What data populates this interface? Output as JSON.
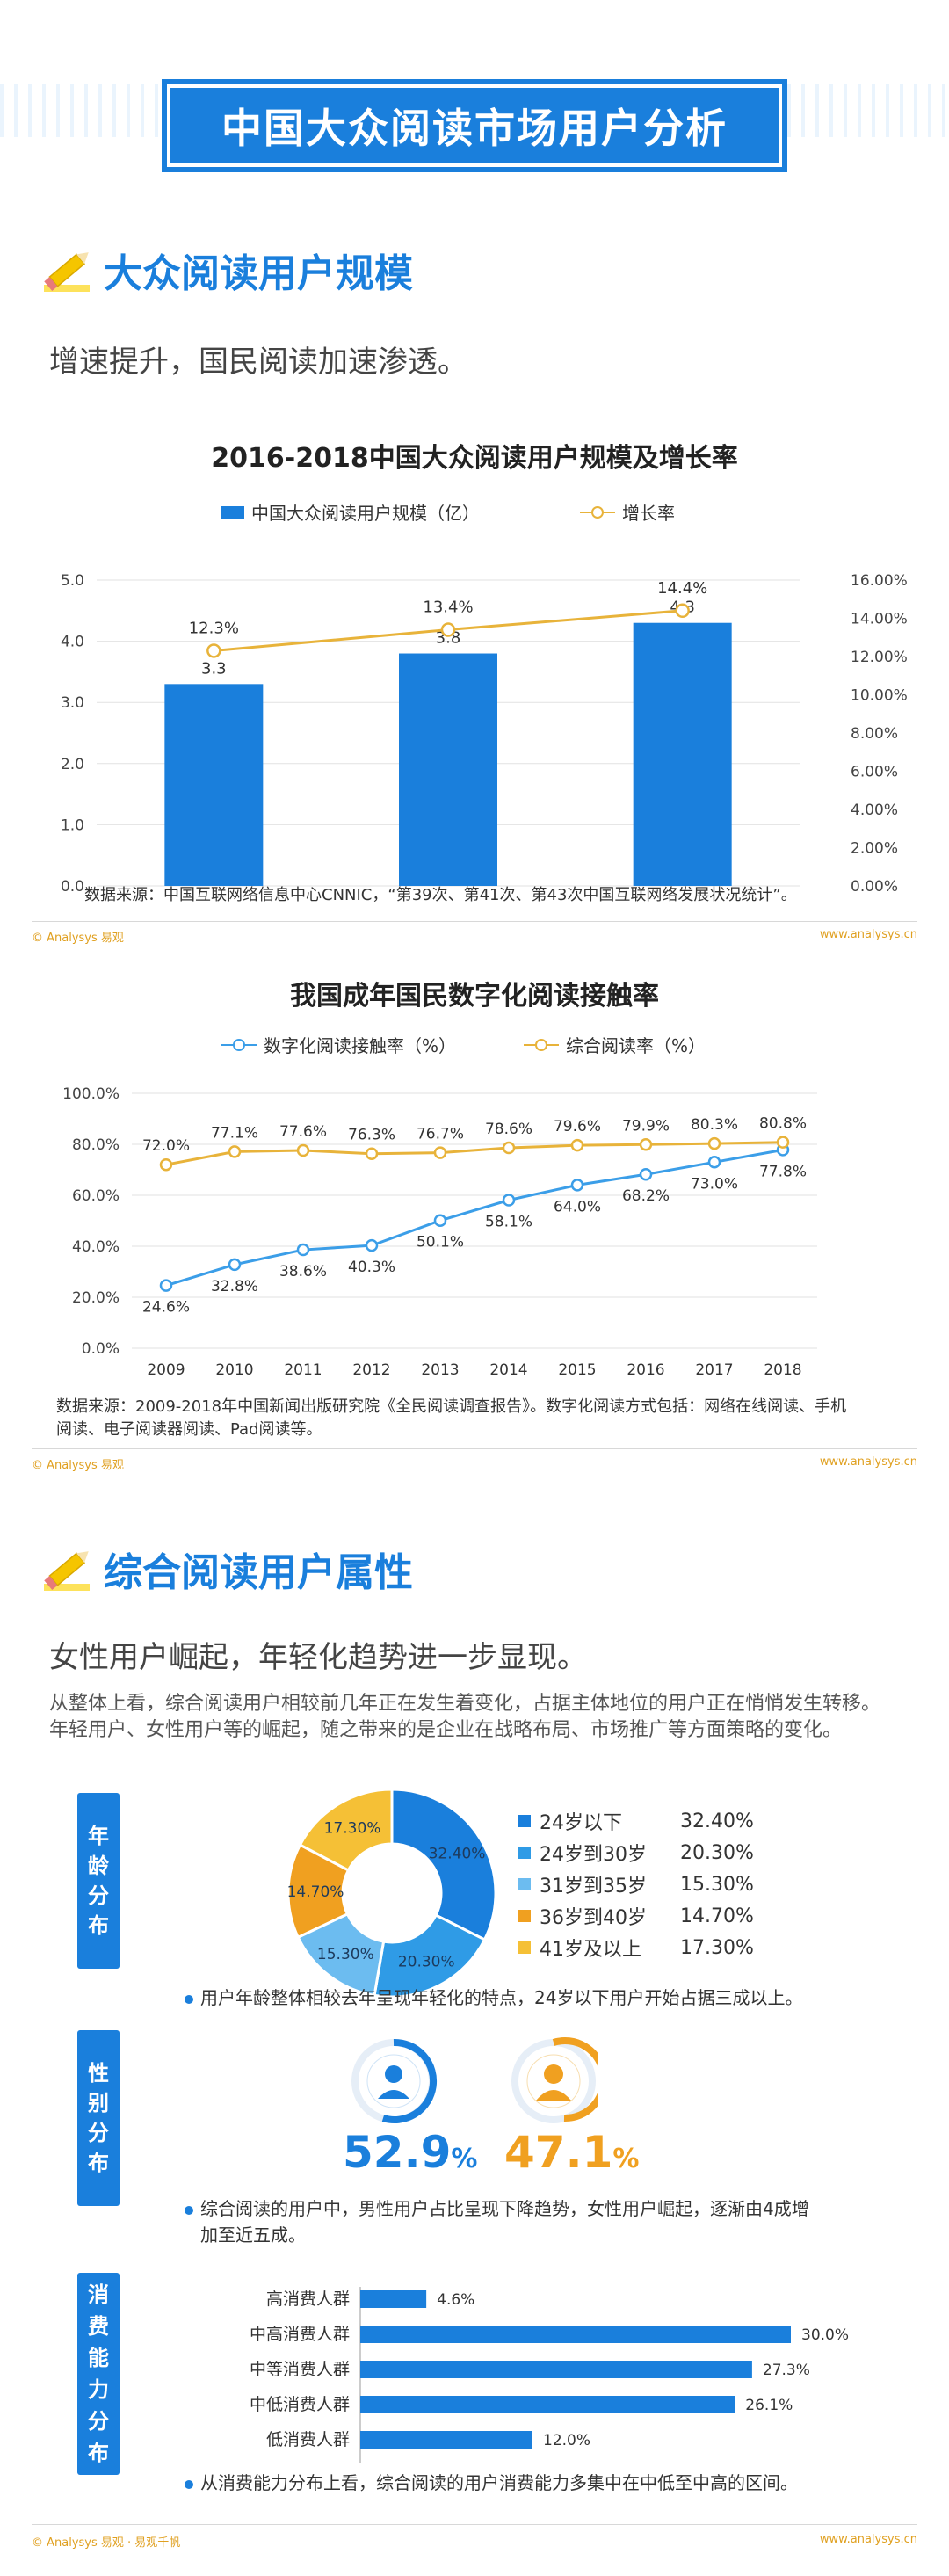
{
  "header": {
    "title": "中国大众阅读市场用户分析"
  },
  "section1": {
    "title": "大众阅读用户规模",
    "subtitle": "增速提升，国民阅读加速渗透。"
  },
  "chart1": {
    "title": "2016-2018中国大众阅读用户规模及增长率",
    "legend_bar": "中国大众阅读用户规模（亿）",
    "legend_line": "增长率",
    "source": "数据来源：中国互联网络信息中心CNNIC，“第39次、第41次、第43次中国互联网络发展状况统计”。"
  },
  "chart2": {
    "title": "我国成年国民数字化阅读接触率",
    "legend_a": "数字化阅读接触率（%）",
    "legend_b": "综合阅读率（%）",
    "source_line1": "数据来源：2009-2018年中国新闻出版研究院《全民阅读调查报告》。数字化阅读方式包括：网络在线阅读、手机",
    "source_line2": "阅读、电子阅读器阅读、Pad阅读等。"
  },
  "footer": {
    "left": "© Analysys 易观",
    "right": "www.analysys.cn"
  },
  "footer_bottom": {
    "left": "© Analysys 易观 · 易观千帆",
    "right": "www.analysys.cn"
  },
  "section2": {
    "title": "综合阅读用户属性",
    "subtitle": "女性用户崛起，年轻化趋势进一步显现。",
    "paragraph": "从整体上看，综合阅读用户相较前几年正在发生着变化，占据主体地位的用户正在悄悄发生转移。年轻用户、女性用户等的崛起，随之带来的是企业在战略布局、市场推广等方面策略的变化。"
  },
  "age": {
    "tab": [
      "年",
      "龄",
      "分",
      "布"
    ],
    "note": "用户年龄整体相较去年呈现年轻化的特点，24岁以下用户开始占据三成以上。"
  },
  "gender": {
    "tab": [
      "性",
      "别",
      "分",
      "布"
    ],
    "male_pct": "52.9",
    "female_pct": "47.1",
    "pct_sign": "%",
    "note_line1": "综合阅读的用户中，男性用户占比呈现下降趋势，女性用户崛起，逐渐由4成增",
    "note_line2": "加至近五成。"
  },
  "consumption": {
    "tab": [
      "消",
      "费",
      "能",
      "力",
      "分",
      "布"
    ],
    "note": "从消费能力分布上看，综合阅读的用户消费能力多集中在中低至中高的区间。"
  },
  "colors": {
    "blue": "#1a7fdc",
    "light_blue": "#3b9ee8",
    "orange": "#e8b33a",
    "age_colors": [
      "#1a7fdc",
      "#2f9be6",
      "#6cbcf0",
      "#f0a020",
      "#f5c036"
    ]
  },
  "chart_data": [
    {
      "type": "bar",
      "title": "2016-2018中国大众阅读用户规模及增长率",
      "categories": [
        "2016",
        "2017",
        "2018"
      ],
      "series": [
        {
          "name": "中国大众阅读用户规模（亿）",
          "values": [
            3.3,
            3.8,
            4.3
          ],
          "labels": [
            "3.3",
            "3.8",
            "4.3"
          ],
          "axis": "left"
        },
        {
          "name": "增长率",
          "type": "line",
          "values": [
            12.3,
            13.4,
            14.4
          ],
          "labels": [
            "12.3%",
            "13.4%",
            "14.4%"
          ],
          "axis": "right"
        }
      ],
      "ylim": [
        0,
        5
      ],
      "yticks": [
        "0.0",
        "1.0",
        "2.0",
        "3.0",
        "4.0",
        "5.0"
      ],
      "y2lim": [
        0,
        16
      ],
      "y2ticks": [
        "0.00%",
        "2.00%",
        "4.00%",
        "6.00%",
        "8.00%",
        "10.00%",
        "12.00%",
        "14.00%",
        "16.00%"
      ],
      "legend": "top"
    },
    {
      "type": "line",
      "title": "我国成年国民数字化阅读接触率",
      "categories": [
        "2009",
        "2010",
        "2011",
        "2012",
        "2013",
        "2014",
        "2015",
        "2016",
        "2017",
        "2018"
      ],
      "series": [
        {
          "name": "数字化阅读接触率（%）",
          "values": [
            24.6,
            32.8,
            38.6,
            40.3,
            50.1,
            58.1,
            64.0,
            68.2,
            73.0,
            77.8
          ],
          "labels": [
            "24.6%",
            "32.8%",
            "38.6%",
            "40.3%",
            "50.1%",
            "58.1%",
            "64.0%",
            "68.2%",
            "73.0%",
            "77.8%"
          ]
        },
        {
          "name": "综合阅读率（%）",
          "values": [
            72.0,
            77.1,
            77.6,
            76.3,
            76.7,
            78.6,
            79.6,
            79.9,
            80.3,
            80.8
          ],
          "labels": [
            "72.0%",
            "77.1%",
            "77.6%",
            "76.3%",
            "76.7%",
            "78.6%",
            "79.6%",
            "79.9%",
            "80.3%",
            "80.8%"
          ]
        }
      ],
      "ylim": [
        0,
        100
      ],
      "yticks": [
        "0.0%",
        "20.0%",
        "40.0%",
        "60.0%",
        "80.0%",
        "100.0%"
      ],
      "legend": "top"
    },
    {
      "type": "pie",
      "title": "年龄分布",
      "categories": [
        "24岁以下",
        "24岁到30岁",
        "31岁到35岁",
        "36岁到40岁",
        "41岁及以上"
      ],
      "values": [
        32.4,
        20.3,
        15.3,
        14.7,
        17.3
      ],
      "labels": [
        "32.40%",
        "20.30%",
        "15.30%",
        "14.70%",
        "17.30%"
      ],
      "legend": "right"
    },
    {
      "type": "pie",
      "title": "性别分布",
      "categories": [
        "男",
        "女"
      ],
      "values": [
        52.9,
        47.1
      ]
    },
    {
      "type": "bar",
      "title": "消费能力分布",
      "orientation": "horizontal",
      "categories": [
        "高消费人群",
        "中高消费人群",
        "中等消费人群",
        "中低消费人群",
        "低消费人群"
      ],
      "values": [
        4.6,
        30.0,
        27.3,
        26.1,
        12.0
      ],
      "labels": [
        "4.6%",
        "30.0%",
        "27.3%",
        "26.1%",
        "12.0%"
      ],
      "xlim": [
        0,
        30
      ]
    }
  ]
}
